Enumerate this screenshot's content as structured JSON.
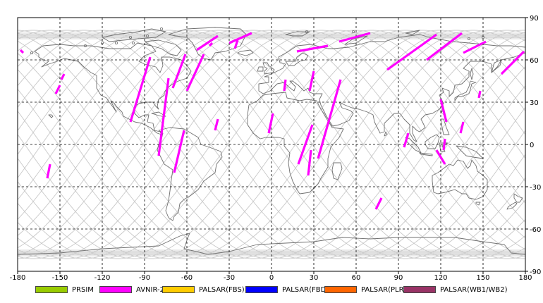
{
  "map": {
    "lon_ticks": [
      "-180",
      "-150",
      "-120",
      "-90",
      "-60",
      "-30",
      "0",
      "30",
      "60",
      "90",
      "120",
      "150",
      "180"
    ],
    "lat_ticks": [
      "90",
      "60",
      "30",
      "0",
      "-30",
      "-60",
      "-90"
    ],
    "lon_range": [
      -180,
      180
    ],
    "lat_range": [
      -90,
      90
    ],
    "grid": "dashed",
    "colors": {
      "coast": "#707070",
      "orbit": "#c8c8c8",
      "grid": "#000000",
      "track": "#ff00ff"
    },
    "orbit_count": 15,
    "orbit_max_lat": 81,
    "swaths": [
      {
        "from": [
          -178,
          67
        ],
        "to": [
          -176,
          65
        ]
      },
      {
        "from": [
          -157,
          -14
        ],
        "to": [
          -159,
          -24
        ]
      },
      {
        "from": [
          -150,
          42
        ],
        "to": [
          -153,
          36
        ]
      },
      {
        "from": [
          -147,
          50
        ],
        "to": [
          -149,
          46
        ]
      },
      {
        "from": [
          -86,
          62
        ],
        "to": [
          -100,
          16
        ]
      },
      {
        "from": [
          -73,
          47
        ],
        "to": [
          -80,
          -8
        ]
      },
      {
        "from": [
          -61,
          64
        ],
        "to": [
          -70,
          40
        ]
      },
      {
        "from": [
          -48,
          64
        ],
        "to": [
          -60,
          38
        ]
      },
      {
        "from": [
          -42,
          72
        ],
        "to": [
          -44,
          70
        ]
      },
      {
        "from": [
          -38,
          77
        ],
        "to": [
          -53,
          67
        ]
      },
      {
        "from": [
          -24,
          74
        ],
        "to": [
          -26,
          68
        ]
      },
      {
        "from": [
          -14,
          79
        ],
        "to": [
          -30,
          72
        ]
      },
      {
        "from": [
          -62,
          10
        ],
        "to": [
          -69,
          -20
        ]
      },
      {
        "from": [
          -38,
          18
        ],
        "to": [
          -40,
          10
        ]
      },
      {
        "from": [
          1,
          22
        ],
        "to": [
          -2,
          8
        ]
      },
      {
        "from": [
          10,
          46
        ],
        "to": [
          9,
          38
        ]
      },
      {
        "from": [
          40,
          70
        ],
        "to": [
          18,
          66
        ]
      },
      {
        "from": [
          30,
          52
        ],
        "to": [
          27,
          38
        ]
      },
      {
        "from": [
          29,
          14
        ],
        "to": [
          19,
          -14
        ]
      },
      {
        "from": [
          49,
          46
        ],
        "to": [
          33,
          -10
        ]
      },
      {
        "from": [
          28,
          -4
        ],
        "to": [
          26,
          -22
        ]
      },
      {
        "from": [
          70,
          79
        ],
        "to": [
          48,
          73
        ]
      },
      {
        "from": [
          78,
          -38
        ],
        "to": [
          74,
          -46
        ]
      },
      {
        "from": [
          117,
          78
        ],
        "to": [
          82,
          53
        ]
      },
      {
        "from": [
          97,
          8
        ],
        "to": [
          94,
          -2
        ]
      },
      {
        "from": [
          123,
          -14
        ],
        "to": [
          117,
          -4
        ]
      },
      {
        "from": [
          123,
          4
        ],
        "to": [
          122,
          -4
        ]
      },
      {
        "from": [
          120,
          32
        ],
        "to": [
          124,
          16
        ]
      },
      {
        "from": [
          136,
          16
        ],
        "to": [
          134,
          8
        ]
      },
      {
        "from": [
          148,
          38
        ],
        "to": [
          147,
          33
        ]
      },
      {
        "from": [
          135,
          79
        ],
        "to": [
          110,
          60
        ]
      },
      {
        "from": [
          152,
          73
        ],
        "to": [
          136,
          65
        ]
      },
      {
        "from": [
          179,
          66
        ],
        "to": [
          163,
          50
        ]
      }
    ]
  },
  "legend": [
    {
      "label": "PRSIM",
      "color": "#99cc00"
    },
    {
      "label": "AVNIR-2",
      "color": "#ff00ff"
    },
    {
      "label": "PALSAR(FBS)",
      "color": "#ffcc00"
    },
    {
      "label": "PALSAR(FBD)",
      "color": "#0000ff"
    },
    {
      "label": "PALSAR(PLR)",
      "color": "#ff6600"
    },
    {
      "label": "PALSAR(WB1/WB2)",
      "color": "#993366"
    }
  ]
}
